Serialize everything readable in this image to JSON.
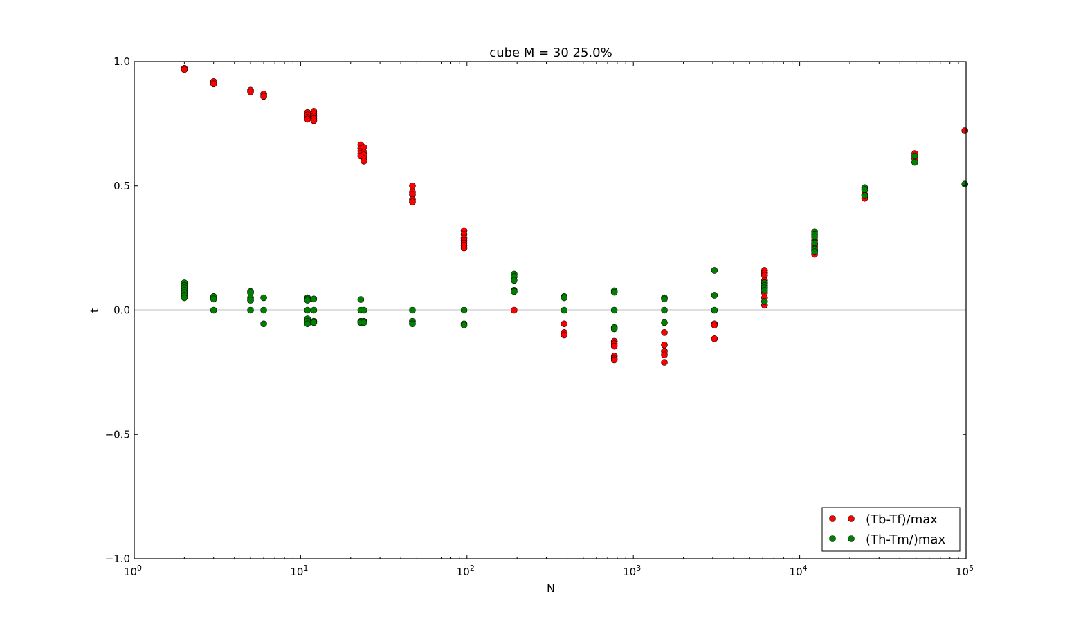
{
  "chart_data": {
    "type": "scatter",
    "title": "cube M = 30 25.0%",
    "xlabel": "N",
    "ylabel": "t",
    "xscale": "log",
    "xlim": [
      1,
      100000
    ],
    "ylim": [
      -1.0,
      1.0
    ],
    "grid": false,
    "legend_placement": "lower-right",
    "reference_line": {
      "y": 0.0,
      "color": "#000000"
    },
    "x_ticks": [
      {
        "base": "10",
        "exp": "0",
        "value": 1
      },
      {
        "base": "10",
        "exp": "1",
        "value": 10
      },
      {
        "base": "10",
        "exp": "2",
        "value": 100
      },
      {
        "base": "10",
        "exp": "3",
        "value": 1000
      },
      {
        "base": "10",
        "exp": "4",
        "value": 10000
      },
      {
        "base": "10",
        "exp": "5",
        "value": 100000
      }
    ],
    "y_ticks": [
      {
        "label": "1.0",
        "value": 1.0
      },
      {
        "label": "0.5",
        "value": 0.5
      },
      {
        "label": "0.0",
        "value": 0.0
      },
      {
        "label": "−0.5",
        "value": -0.5
      },
      {
        "label": "−1.0",
        "value": -1.0
      }
    ],
    "series": [
      {
        "name": "(Tb-Tf)/max",
        "color": "#ff0000",
        "points": [
          [
            2,
            0.973
          ],
          [
            2,
            0.968
          ],
          [
            3,
            0.92
          ],
          [
            3,
            0.91
          ],
          [
            5,
            0.885
          ],
          [
            5,
            0.878
          ],
          [
            6,
            0.87
          ],
          [
            6,
            0.86
          ],
          [
            11,
            0.795
          ],
          [
            11,
            0.785
          ],
          [
            11,
            0.775
          ],
          [
            11,
            0.768
          ],
          [
            12,
            0.8
          ],
          [
            12,
            0.79
          ],
          [
            12,
            0.78
          ],
          [
            12,
            0.77
          ],
          [
            12,
            0.762
          ],
          [
            23,
            0.665
          ],
          [
            23,
            0.65
          ],
          [
            23,
            0.64
          ],
          [
            23,
            0.63
          ],
          [
            23,
            0.62
          ],
          [
            24,
            0.655
          ],
          [
            24,
            0.635
          ],
          [
            24,
            0.625
          ],
          [
            24,
            0.61
          ],
          [
            24,
            0.6
          ],
          [
            47,
            0.5
          ],
          [
            47,
            0.475
          ],
          [
            47,
            0.465
          ],
          [
            47,
            0.445
          ],
          [
            47,
            0.435
          ],
          [
            96,
            0.32
          ],
          [
            96,
            0.305
          ],
          [
            96,
            0.29
          ],
          [
            96,
            0.28
          ],
          [
            96,
            0.27
          ],
          [
            96,
            0.26
          ],
          [
            96,
            0.25
          ],
          [
            192,
            0.0
          ],
          [
            384,
            -0.055
          ],
          [
            384,
            -0.09
          ],
          [
            384,
            -0.1
          ],
          [
            768,
            -0.125
          ],
          [
            768,
            -0.135
          ],
          [
            768,
            -0.145
          ],
          [
            768,
            -0.185
          ],
          [
            768,
            -0.195
          ],
          [
            768,
            -0.2
          ],
          [
            1536,
            -0.09
          ],
          [
            1536,
            -0.14
          ],
          [
            1536,
            -0.165
          ],
          [
            1536,
            -0.18
          ],
          [
            1536,
            -0.21
          ],
          [
            3072,
            -0.055
          ],
          [
            3072,
            -0.06
          ],
          [
            3072,
            -0.115
          ],
          [
            6144,
            0.16
          ],
          [
            6144,
            0.15
          ],
          [
            6144,
            0.14
          ],
          [
            6144,
            0.12
          ],
          [
            6144,
            0.11
          ],
          [
            6144,
            0.09
          ],
          [
            6144,
            0.07
          ],
          [
            6144,
            0.05
          ],
          [
            6144,
            0.02
          ],
          [
            12288,
            0.28
          ],
          [
            12288,
            0.265
          ],
          [
            12288,
            0.255
          ],
          [
            12288,
            0.24
          ],
          [
            12288,
            0.225
          ],
          [
            24576,
            0.465
          ],
          [
            24576,
            0.45
          ],
          [
            49152,
            0.63
          ],
          [
            49152,
            0.61
          ],
          [
            98304,
            0.722
          ]
        ]
      },
      {
        "name": "(Th-Tm/)max",
        "color": "#008000",
        "points": [
          [
            2,
            0.11
          ],
          [
            2,
            0.1
          ],
          [
            2,
            0.09
          ],
          [
            2,
            0.08
          ],
          [
            2,
            0.07
          ],
          [
            2,
            0.06
          ],
          [
            2,
            0.05
          ],
          [
            3,
            0.055
          ],
          [
            3,
            0.045
          ],
          [
            3,
            0.0
          ],
          [
            5,
            0.075
          ],
          [
            5,
            0.07
          ],
          [
            5,
            0.05
          ],
          [
            5,
            0.04
          ],
          [
            5,
            0.0
          ],
          [
            6,
            0.05
          ],
          [
            6,
            0.0
          ],
          [
            6,
            -0.055
          ],
          [
            11,
            0.05
          ],
          [
            11,
            0.045
          ],
          [
            11,
            0.04
          ],
          [
            11,
            0.0
          ],
          [
            11,
            -0.035
          ],
          [
            11,
            -0.045
          ],
          [
            11,
            -0.055
          ],
          [
            12,
            0.045
          ],
          [
            12,
            0.0
          ],
          [
            12,
            -0.045
          ],
          [
            12,
            -0.05
          ],
          [
            23,
            0.043
          ],
          [
            23,
            0.0
          ],
          [
            23,
            -0.045
          ],
          [
            23,
            -0.05
          ],
          [
            24,
            0.0
          ],
          [
            24,
            -0.045
          ],
          [
            24,
            -0.05
          ],
          [
            47,
            0.0
          ],
          [
            47,
            -0.045
          ],
          [
            47,
            -0.055
          ],
          [
            96,
            0.0
          ],
          [
            96,
            -0.055
          ],
          [
            96,
            -0.06
          ],
          [
            192,
            0.145
          ],
          [
            192,
            0.135
          ],
          [
            192,
            0.12
          ],
          [
            192,
            0.08
          ],
          [
            192,
            0.075
          ],
          [
            384,
            0.055
          ],
          [
            384,
            0.05
          ],
          [
            384,
            0.0
          ],
          [
            768,
            0.078
          ],
          [
            768,
            0.072
          ],
          [
            768,
            0.0
          ],
          [
            768,
            -0.07
          ],
          [
            768,
            -0.075
          ],
          [
            1536,
            0.05
          ],
          [
            1536,
            0.045
          ],
          [
            1536,
            0.0
          ],
          [
            1536,
            -0.05
          ],
          [
            3072,
            0.16
          ],
          [
            3072,
            0.06
          ],
          [
            3072,
            0.0
          ],
          [
            6144,
            0.11
          ],
          [
            6144,
            0.1
          ],
          [
            6144,
            0.09
          ],
          [
            6144,
            0.08
          ],
          [
            6144,
            0.035
          ],
          [
            12288,
            0.315
          ],
          [
            12288,
            0.305
          ],
          [
            12288,
            0.295
          ],
          [
            12288,
            0.27
          ],
          [
            12288,
            0.245
          ],
          [
            12288,
            0.235
          ],
          [
            24576,
            0.493
          ],
          [
            24576,
            0.485
          ],
          [
            24576,
            0.46
          ],
          [
            49152,
            0.62
          ],
          [
            49152,
            0.595
          ],
          [
            98304,
            0.507
          ]
        ]
      }
    ]
  }
}
